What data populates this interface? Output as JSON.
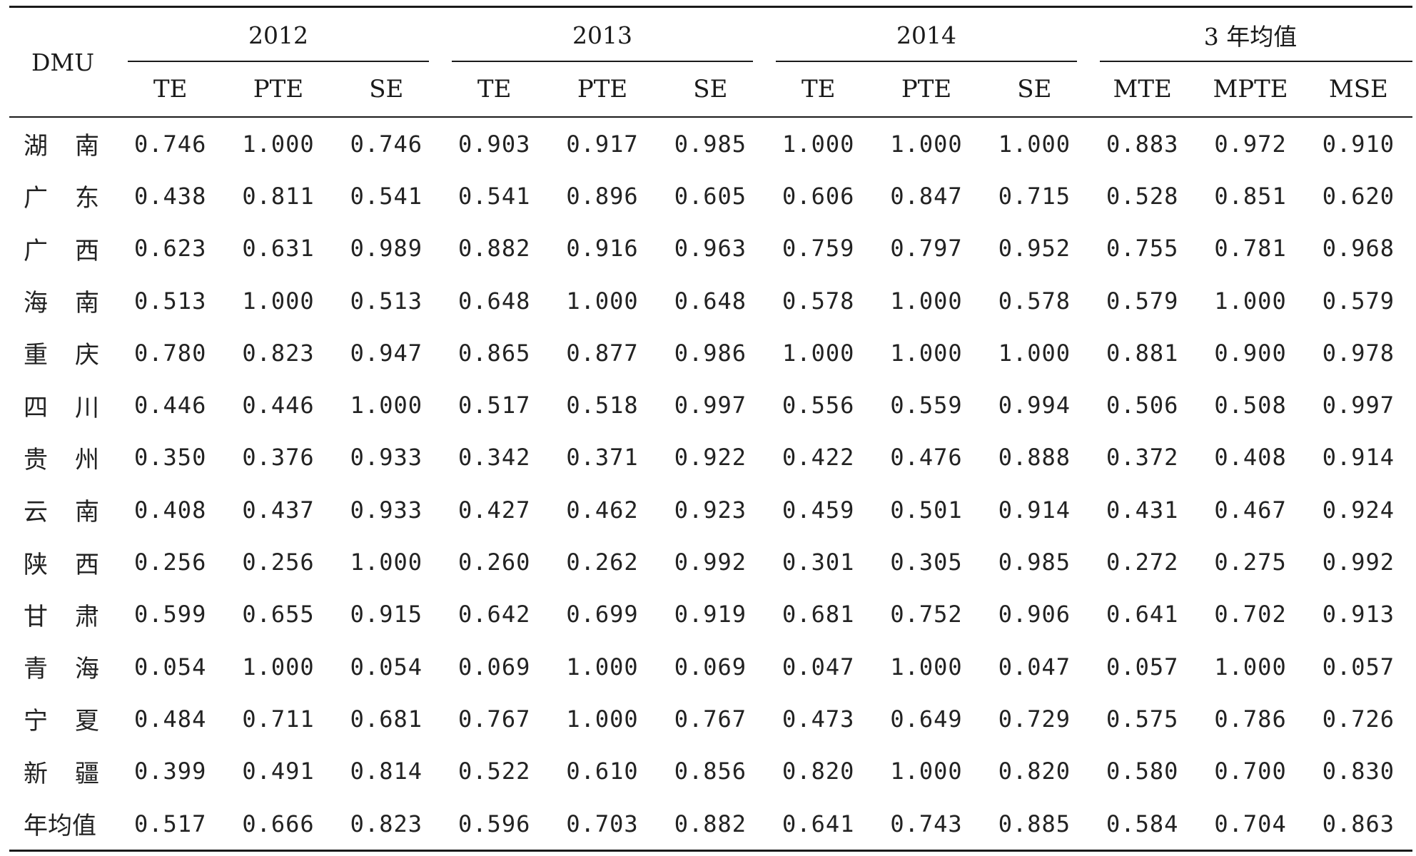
{
  "table": {
    "dmu_label": "DMU",
    "years": [
      "2012",
      "2013",
      "2014",
      "3 年均值"
    ],
    "sub_headers": [
      "TE",
      "PTE",
      "SE",
      "TE",
      "PTE",
      "SE",
      "TE",
      "PTE",
      "SE",
      "MTE",
      "MPTE",
      "MSE"
    ],
    "rows": [
      {
        "region": [
          "湖",
          "南"
        ],
        "values": [
          "0.746",
          "1.000",
          "0.746",
          "0.903",
          "0.917",
          "0.985",
          "1.000",
          "1.000",
          "1.000",
          "0.883",
          "0.972",
          "0.910"
        ]
      },
      {
        "region": [
          "广",
          "东"
        ],
        "values": [
          "0.438",
          "0.811",
          "0.541",
          "0.541",
          "0.896",
          "0.605",
          "0.606",
          "0.847",
          "0.715",
          "0.528",
          "0.851",
          "0.620"
        ]
      },
      {
        "region": [
          "广",
          "西"
        ],
        "values": [
          "0.623",
          "0.631",
          "0.989",
          "0.882",
          "0.916",
          "0.963",
          "0.759",
          "0.797",
          "0.952",
          "0.755",
          "0.781",
          "0.968"
        ]
      },
      {
        "region": [
          "海",
          "南"
        ],
        "values": [
          "0.513",
          "1.000",
          "0.513",
          "0.648",
          "1.000",
          "0.648",
          "0.578",
          "1.000",
          "0.578",
          "0.579",
          "1.000",
          "0.579"
        ]
      },
      {
        "region": [
          "重",
          "庆"
        ],
        "values": [
          "0.780",
          "0.823",
          "0.947",
          "0.865",
          "0.877",
          "0.986",
          "1.000",
          "1.000",
          "1.000",
          "0.881",
          "0.900",
          "0.978"
        ]
      },
      {
        "region": [
          "四",
          "川"
        ],
        "values": [
          "0.446",
          "0.446",
          "1.000",
          "0.517",
          "0.518",
          "0.997",
          "0.556",
          "0.559",
          "0.994",
          "0.506",
          "0.508",
          "0.997"
        ]
      },
      {
        "region": [
          "贵",
          "州"
        ],
        "values": [
          "0.350",
          "0.376",
          "0.933",
          "0.342",
          "0.371",
          "0.922",
          "0.422",
          "0.476",
          "0.888",
          "0.372",
          "0.408",
          "0.914"
        ]
      },
      {
        "region": [
          "云",
          "南"
        ],
        "values": [
          "0.408",
          "0.437",
          "0.933",
          "0.427",
          "0.462",
          "0.923",
          "0.459",
          "0.501",
          "0.914",
          "0.431",
          "0.467",
          "0.924"
        ]
      },
      {
        "region": [
          "陕",
          "西"
        ],
        "values": [
          "0.256",
          "0.256",
          "1.000",
          "0.260",
          "0.262",
          "0.992",
          "0.301",
          "0.305",
          "0.985",
          "0.272",
          "0.275",
          "0.992"
        ]
      },
      {
        "region": [
          "甘",
          "肃"
        ],
        "values": [
          "0.599",
          "0.655",
          "0.915",
          "0.642",
          "0.699",
          "0.919",
          "0.681",
          "0.752",
          "0.906",
          "0.641",
          "0.702",
          "0.913"
        ]
      },
      {
        "region": [
          "青",
          "海"
        ],
        "values": [
          "0.054",
          "1.000",
          "0.054",
          "0.069",
          "1.000",
          "0.069",
          "0.047",
          "1.000",
          "0.047",
          "0.057",
          "1.000",
          "0.057"
        ]
      },
      {
        "region": [
          "宁",
          "夏"
        ],
        "values": [
          "0.484",
          "0.711",
          "0.681",
          "0.767",
          "1.000",
          "0.767",
          "0.473",
          "0.649",
          "0.729",
          "0.575",
          "0.786",
          "0.726"
        ]
      },
      {
        "region": [
          "新",
          "疆"
        ],
        "values": [
          "0.399",
          "0.491",
          "0.814",
          "0.522",
          "0.610",
          "0.856",
          "0.820",
          "1.000",
          "0.820",
          "0.580",
          "0.700",
          "0.830"
        ]
      }
    ],
    "average_row": {
      "label": "年均值",
      "values": [
        "0.517",
        "0.666",
        "0.823",
        "0.596",
        "0.703",
        "0.882",
        "0.641",
        "0.743",
        "0.885",
        "0.584",
        "0.704",
        "0.863"
      ]
    }
  }
}
